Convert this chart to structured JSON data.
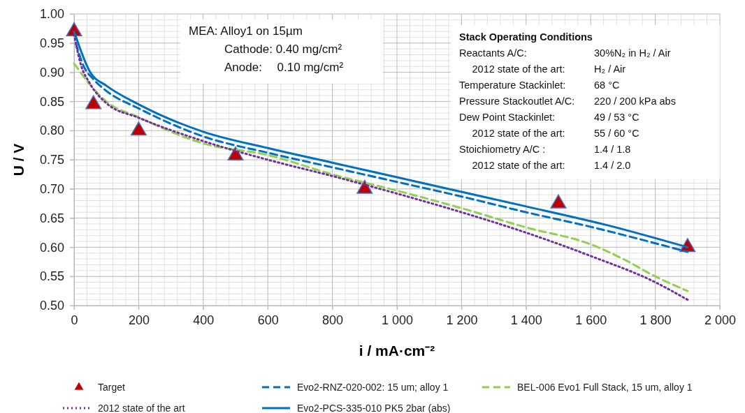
{
  "chart_data": {
    "type": "line",
    "xlabel": "i / mA·cm⁻²",
    "ylabel": "U / V",
    "xlim": [
      0,
      2000
    ],
    "ylim": [
      0.5,
      1.0
    ],
    "xticks": [
      0,
      200,
      400,
      600,
      800,
      {
        "value": 1000,
        "label": "1 000"
      },
      {
        "value": 1200,
        "label": "1 200"
      },
      {
        "value": 1400,
        "label": "1 400"
      },
      {
        "value": 1600,
        "label": "1 600"
      },
      {
        "value": 1800,
        "label": "1 800"
      },
      {
        "value": 2000,
        "label": "2 000"
      }
    ],
    "yticks": [
      {
        "value": 0.5,
        "label": "0.50"
      },
      {
        "value": 0.55,
        "label": "0.55"
      },
      {
        "value": 0.6,
        "label": "0.60"
      },
      {
        "value": 0.65,
        "label": "0.65"
      },
      {
        "value": 0.7,
        "label": "0.70"
      },
      {
        "value": 0.75,
        "label": "0.75"
      },
      {
        "value": 0.8,
        "label": "0.80"
      },
      {
        "value": 0.85,
        "label": "0.85"
      },
      {
        "value": 0.9,
        "label": "0.90"
      },
      {
        "value": 0.95,
        "label": "0.95"
      },
      {
        "value": 1.0,
        "label": "1.00"
      }
    ],
    "grid": true,
    "legend": "bottom",
    "marker": "none",
    "series": [
      {
        "name": "Target",
        "type": "scatter",
        "marker": "triangle",
        "color": "#c00000",
        "x": [
          0,
          60,
          200,
          500,
          900,
          1500,
          1900
        ],
        "values": [
          0.97,
          0.845,
          0.8,
          0.757,
          0.7,
          0.675,
          0.6
        ]
      },
      {
        "name": "Evo2-RNZ-020-002: 15 um; alloy 1",
        "color": "#0070c0",
        "line_style": "dashed",
        "x": [
          5,
          30,
          60,
          100,
          200,
          400,
          600,
          800,
          1000,
          1200,
          1400,
          1600,
          1900
        ],
        "values": [
          0.95,
          0.91,
          0.888,
          0.868,
          0.838,
          0.79,
          0.762,
          0.737,
          0.712,
          0.687,
          0.66,
          0.635,
          0.592
        ]
      },
      {
        "name": "BEL-006 Evo1 Full Stack, 15 um, alloy 1",
        "color": "#92d050",
        "line_style": "dashed",
        "x": [
          0,
          20,
          40,
          100,
          200,
          400,
          600,
          800,
          1000,
          1200,
          1400,
          1600,
          1700,
          1800,
          1900
        ],
        "values": [
          0.915,
          0.9,
          0.885,
          0.85,
          0.823,
          0.778,
          0.758,
          0.725,
          0.697,
          0.667,
          0.634,
          0.605,
          0.58,
          0.55,
          0.525
        ]
      },
      {
        "name": "2012 state of the art",
        "color": "#7030a0",
        "line_style": "dotted",
        "x": [
          0,
          20,
          50,
          100,
          200,
          400,
          600,
          800,
          1000,
          1200,
          1400,
          1600,
          1800,
          1900
        ],
        "values": [
          0.965,
          0.915,
          0.88,
          0.847,
          0.822,
          0.782,
          0.75,
          0.722,
          0.692,
          0.66,
          0.625,
          0.585,
          0.54,
          0.51
        ]
      },
      {
        "name": "Evo2-PCS-335-010 PK5 2bar (abs)",
        "color": "#0070c0",
        "line_style": "solid",
        "x": [
          0,
          50,
          100,
          200,
          400,
          600,
          800,
          1000,
          1200,
          1400,
          1650,
          1900
        ],
        "values": [
          0.97,
          0.9,
          0.877,
          0.845,
          0.798,
          0.77,
          0.745,
          0.72,
          0.695,
          0.67,
          0.638,
          0.6
        ]
      }
    ],
    "annotations": [
      "MEA: Alloy1 on 15µm",
      "   Cathode: 0.40 mg/cm²",
      "   Anode:  0.10 mg/cm²",
      "Stack Operating Conditions",
      "Reactants A/C:\t30%N₂ in H₂ / Air",
      "  2012 state of the art:\tH₂ / Air",
      "Temperature Stackinlet:\t68 °C",
      "Pressure Stackoutlet A/C:\t220 / 200 kPa abs",
      "Dew Point Stackinlet:\t49 / 53 °C",
      "  2012 state of the art:\t55 / 60 °C",
      "Stoichiometry A/C :\t1.4 / 1.8",
      "  2012 state of the art:\t1.4 / 2.0"
    ]
  }
}
